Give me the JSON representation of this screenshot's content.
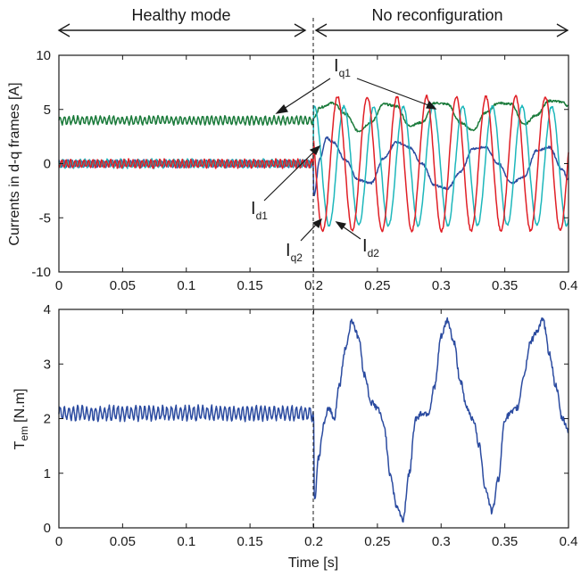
{
  "header": {
    "left_mode": "Healthy mode",
    "right_mode": "No reconfiguration"
  },
  "chart_data": [
    {
      "type": "line",
      "ylabel": "Currents in d-q frames [A]",
      "xlabel": "",
      "xlim": [
        0,
        0.4
      ],
      "ylim": [
        -10,
        10
      ],
      "x_ticks": [
        "0",
        "0.05",
        "0.1",
        "0.15",
        "0.2",
        "0.25",
        "0.3",
        "0.35",
        "0.4"
      ],
      "y_ticks": [
        "10",
        "5",
        "0",
        "-5",
        "-10"
      ],
      "fault_time": 0.2,
      "grid": false,
      "annotations": [
        {
          "main": "I",
          "sub": "q1"
        },
        {
          "main": "I",
          "sub": "d1"
        },
        {
          "main": "I",
          "sub": "q2"
        },
        {
          "main": "I",
          "sub": "d2"
        }
      ],
      "series": [
        {
          "id": "Iq1",
          "color": "#1a7a3a",
          "before": {
            "mean": 4.0,
            "ripple": 0.35
          },
          "after_points": [
            [
              0.2,
              4.2
            ],
            [
              0.205,
              5.2
            ],
            [
              0.215,
              5.6
            ],
            [
              0.225,
              4.6
            ],
            [
              0.235,
              3.0
            ],
            [
              0.245,
              3.8
            ],
            [
              0.255,
              5.5
            ],
            [
              0.265,
              5.3
            ],
            [
              0.275,
              3.5
            ],
            [
              0.285,
              3.8
            ],
            [
              0.295,
              5.6
            ],
            [
              0.305,
              5.5
            ],
            [
              0.315,
              3.8
            ],
            [
              0.325,
              3.1
            ],
            [
              0.335,
              4.7
            ],
            [
              0.345,
              5.6
            ],
            [
              0.355,
              5.5
            ],
            [
              0.365,
              3.6
            ],
            [
              0.375,
              4.5
            ],
            [
              0.385,
              5.8
            ],
            [
              0.395,
              5.7
            ],
            [
              0.4,
              5.3
            ]
          ]
        },
        {
          "id": "Id1",
          "color": "#2b4ba0",
          "before": {
            "mean": 0.0,
            "ripple": 0.3
          },
          "after_points": [
            [
              0.2,
              -3.0
            ],
            [
              0.205,
              0.5
            ],
            [
              0.21,
              2.4
            ],
            [
              0.215,
              2.0
            ],
            [
              0.225,
              0.3
            ],
            [
              0.235,
              -1.5
            ],
            [
              0.245,
              -1.8
            ],
            [
              0.255,
              0.5
            ],
            [
              0.265,
              2.0
            ],
            [
              0.275,
              1.5
            ],
            [
              0.285,
              0.0
            ],
            [
              0.295,
              -2.0
            ],
            [
              0.305,
              -2.3
            ],
            [
              0.315,
              -0.8
            ],
            [
              0.325,
              1.4
            ],
            [
              0.335,
              1.5
            ],
            [
              0.345,
              0.0
            ],
            [
              0.355,
              -1.8
            ],
            [
              0.365,
              -1.2
            ],
            [
              0.375,
              1.2
            ],
            [
              0.385,
              1.5
            ],
            [
              0.395,
              -0.5
            ],
            [
              0.4,
              -1.5
            ]
          ]
        },
        {
          "id": "Iq2",
          "color": "#1db7bb",
          "before": {
            "mean": 0.0,
            "ripple": 0.35
          },
          "after": {
            "amplitude": 5.5,
            "period": 0.0233,
            "phase": 1.45,
            "offset": -0.2
          }
        },
        {
          "id": "Id2",
          "color": "#e01f26",
          "before": {
            "mean": 0.0,
            "ripple": 0.35
          },
          "after": {
            "amplitude": 6.2,
            "period": 0.0233,
            "phase": 2.8,
            "offset": 0.0
          }
        }
      ]
    },
    {
      "type": "line",
      "ylabel_main": "T",
      "ylabel_sub": "em",
      "ylabel_unit": "[N.m]",
      "xlabel": "Time [s]",
      "xlim": [
        0,
        0.4
      ],
      "ylim": [
        0,
        4
      ],
      "x_ticks": [
        "0",
        "0.05",
        "0.1",
        "0.15",
        "0.2",
        "0.25",
        "0.3",
        "0.35",
        "0.4"
      ],
      "y_ticks": [
        "4",
        "3",
        "2",
        "1",
        "0"
      ],
      "fault_time": 0.2,
      "grid": false,
      "series": [
        {
          "id": "Tem",
          "color": "#2b4ba0",
          "before": {
            "mean": 2.1,
            "ripple": 0.12
          },
          "after_points": [
            [
              0.2,
              2.0
            ],
            [
              0.2005,
              0.5
            ],
            [
              0.204,
              1.3
            ],
            [
              0.208,
              1.9
            ],
            [
              0.212,
              2.2
            ],
            [
              0.216,
              2.0
            ],
            [
              0.22,
              2.6
            ],
            [
              0.225,
              3.3
            ],
            [
              0.23,
              3.8
            ],
            [
              0.235,
              3.5
            ],
            [
              0.24,
              2.8
            ],
            [
              0.245,
              2.3
            ],
            [
              0.25,
              2.2
            ],
            [
              0.255,
              1.9
            ],
            [
              0.26,
              1.0
            ],
            [
              0.265,
              0.4
            ],
            [
              0.27,
              0.15
            ],
            [
              0.275,
              1.0
            ],
            [
              0.28,
              2.0
            ],
            [
              0.285,
              2.1
            ],
            [
              0.29,
              2.1
            ],
            [
              0.295,
              2.6
            ],
            [
              0.3,
              3.5
            ],
            [
              0.305,
              3.8
            ],
            [
              0.31,
              3.4
            ],
            [
              0.315,
              2.7
            ],
            [
              0.32,
              2.2
            ],
            [
              0.325,
              2.0
            ],
            [
              0.33,
              1.5
            ],
            [
              0.335,
              0.7
            ],
            [
              0.34,
              0.3
            ],
            [
              0.345,
              0.9
            ],
            [
              0.35,
              2.0
            ],
            [
              0.355,
              2.1
            ],
            [
              0.36,
              2.2
            ],
            [
              0.365,
              2.8
            ],
            [
              0.37,
              3.4
            ],
            [
              0.375,
              3.6
            ],
            [
              0.38,
              3.8
            ],
            [
              0.385,
              3.2
            ],
            [
              0.39,
              2.6
            ],
            [
              0.395,
              2.0
            ],
            [
              0.4,
              1.8
            ]
          ]
        }
      ]
    }
  ]
}
